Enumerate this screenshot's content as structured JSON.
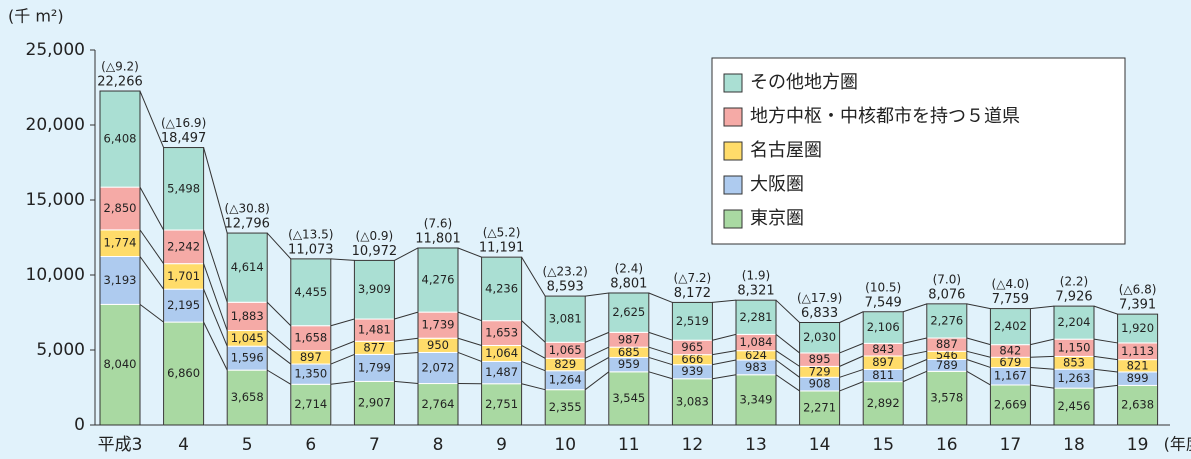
{
  "chart_data": {
    "type": "stacked-bar",
    "y_unit": "(千 m²)",
    "x_unit": "(年度)",
    "categories": [
      "平成3",
      "4",
      "5",
      "6",
      "7",
      "8",
      "9",
      "10",
      "11",
      "12",
      "13",
      "14",
      "15",
      "16",
      "17",
      "18",
      "19"
    ],
    "series": [
      {
        "name": "東京圏",
        "color": "#a9d9a2",
        "values": [
          8040,
          6860,
          3658,
          2714,
          2907,
          2764,
          2751,
          2355,
          3545,
          3083,
          3349,
          2271,
          2892,
          3578,
          2669,
          2456,
          2638
        ],
        "value_labels": [
          "8,040",
          "6,860",
          "3,658",
          "2,714",
          "2,907",
          "2,764",
          "2,751",
          "2,355",
          "3,545",
          "3,083",
          "3,349",
          "2,271",
          "2,892",
          "3,578",
          "2,669",
          "2,456",
          "2,638"
        ]
      },
      {
        "name": "大阪圏",
        "color": "#aecbef",
        "values": [
          3193,
          2195,
          1596,
          1350,
          1799,
          2072,
          1487,
          1264,
          959,
          939,
          983,
          908,
          811,
          789,
          1167,
          1263,
          899
        ],
        "value_labels": [
          "3,193",
          "2,195",
          "1,596",
          "1,350",
          "1,799",
          "2,072",
          "1,487",
          "1,264",
          "959",
          "939",
          "983",
          "908",
          "811",
          "789",
          "1,167",
          "1,263",
          "899"
        ]
      },
      {
        "name": "名古屋圏",
        "color": "#ffdc6a",
        "values": [
          1774,
          1701,
          1045,
          897,
          877,
          950,
          1064,
          829,
          685,
          666,
          624,
          729,
          897,
          546,
          679,
          853,
          821
        ],
        "value_labels": [
          "1,774",
          "1,701",
          "1,045",
          "897",
          "877",
          "950",
          "1,064",
          "829",
          "685",
          "666",
          "624",
          "729",
          "897",
          "546",
          "679",
          "853",
          "821"
        ]
      },
      {
        "name": "地方中枢・中核都市を持つ５道県",
        "color": "#f5aaa6",
        "values": [
          2850,
          2242,
          1883,
          1658,
          1481,
          1739,
          1653,
          1065,
          987,
          965,
          1084,
          895,
          843,
          887,
          842,
          1150,
          1113
        ],
        "value_labels": [
          "2,850",
          "2,242",
          "1,883",
          "1,658",
          "1,481",
          "1,739",
          "1,653",
          "1,065",
          "987",
          "965",
          "1,084",
          "895",
          "843",
          "887",
          "842",
          "1,150",
          "1,113"
        ]
      },
      {
        "name": "その他地方圏",
        "color": "#aadfd3",
        "values": [
          6408,
          5498,
          4614,
          4455,
          3909,
          4276,
          4236,
          3081,
          2625,
          2519,
          2281,
          2030,
          2106,
          2276,
          2402,
          2204,
          1920
        ],
        "value_labels": [
          "6,408",
          "5,498",
          "4,614",
          "4,455",
          "3,909",
          "4,276",
          "4,236",
          "3,081",
          "2,625",
          "2,519",
          "2,281",
          "2,030",
          "2,106",
          "2,276",
          "2,402",
          "2,204",
          "1,920"
        ]
      }
    ],
    "totals": {
      "values": [
        22266,
        18497,
        12796,
        11073,
        10972,
        11801,
        11191,
        8593,
        8801,
        8172,
        8321,
        6833,
        7549,
        8076,
        7759,
        7926,
        7391
      ],
      "value_labels": [
        "22,266",
        "18,497",
        "12,796",
        "11,073",
        "10,972",
        "11,801",
        "11,191",
        "8,593",
        "8,801",
        "8,172",
        "8,321",
        "6,833",
        "7,549",
        "8,076",
        "7,759",
        "7,926",
        "7,391"
      ]
    },
    "changes": [
      "(△9.2)",
      "(△16.9)",
      "(△30.8)",
      "(△13.5)",
      "(△0.9)",
      "(7.6)",
      "(△5.2)",
      "(△23.2)",
      "(2.4)",
      "(△7.2)",
      "(1.9)",
      "(△17.9)",
      "(10.5)",
      "(7.0)",
      "(△4.0)",
      "(2.2)",
      "(△6.8)"
    ],
    "ylim": [
      0,
      25000
    ],
    "yticks": [
      0,
      {
        "value": 5000,
        "label": "5,000"
      },
      {
        "value": 10000,
        "label": "10,000"
      },
      {
        "value": 15000,
        "label": "15,000"
      },
      {
        "value": 20000,
        "label": "20,000"
      },
      {
        "value": 25000,
        "label": "25,000"
      }
    ],
    "legend": "upper right"
  }
}
